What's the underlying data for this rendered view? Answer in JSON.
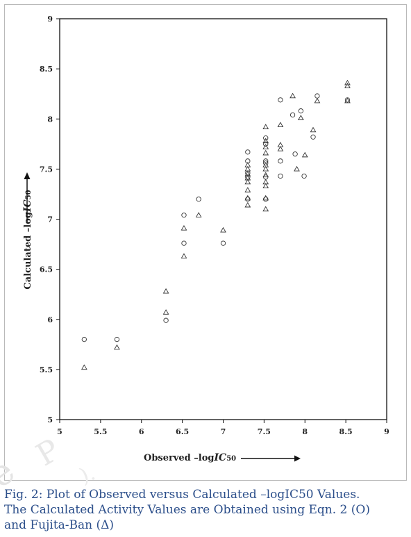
{
  "chart_data": {
    "type": "scatter",
    "xlabel": "Observed –log",
    "xlabel_ic": "IC",
    "xlabel_sub": "50",
    "ylabel": "Calculated –log",
    "ylabel_ic": "IC",
    "ylabel_sub": "50",
    "xlim": [
      5,
      9
    ],
    "ylim": [
      5,
      9
    ],
    "xticks": [
      5,
      5.5,
      6,
      6.5,
      7,
      7.5,
      8,
      8.5,
      9
    ],
    "xtick_labels": [
      "5",
      "5.5",
      "6",
      "6.5",
      "7",
      "7.5",
      "8",
      "8.5",
      "9"
    ],
    "yticks": [
      5,
      5.5,
      6,
      6.5,
      7,
      7.5,
      8,
      8.5,
      9
    ],
    "ytick_labels": [
      "5",
      "5.5",
      "6",
      "6.5",
      "7",
      "7.5",
      "8",
      "8.5",
      "9"
    ],
    "grid": false,
    "series": [
      {
        "marker": "circle",
        "points": [
          [
            5.3,
            5.8
          ],
          [
            5.7,
            5.8
          ],
          [
            6.3,
            5.99
          ],
          [
            6.52,
            7.04
          ],
          [
            6.52,
            6.76
          ],
          [
            6.7,
            7.2
          ],
          [
            7.0,
            6.76
          ],
          [
            7.3,
            7.67
          ],
          [
            7.3,
            7.58
          ],
          [
            7.3,
            7.46
          ],
          [
            7.3,
            7.42
          ],
          [
            7.3,
            7.2
          ],
          [
            7.52,
            7.81
          ],
          [
            7.52,
            7.75
          ],
          [
            7.52,
            7.58
          ],
          [
            7.52,
            7.56
          ],
          [
            7.52,
            7.42
          ],
          [
            7.52,
            7.2
          ],
          [
            7.7,
            8.19
          ],
          [
            7.7,
            7.58
          ],
          [
            7.7,
            7.43
          ],
          [
            7.85,
            8.04
          ],
          [
            7.88,
            7.65
          ],
          [
            7.95,
            8.08
          ],
          [
            7.99,
            7.43
          ],
          [
            8.1,
            7.82
          ],
          [
            8.15,
            8.23
          ],
          [
            8.52,
            8.19
          ]
        ]
      },
      {
        "marker": "triangle",
        "points": [
          [
            5.3,
            5.52
          ],
          [
            5.7,
            5.72
          ],
          [
            6.3,
            6.28
          ],
          [
            6.3,
            6.07
          ],
          [
            6.52,
            6.91
          ],
          [
            6.52,
            6.63
          ],
          [
            6.7,
            7.04
          ],
          [
            7.0,
            6.89
          ],
          [
            7.3,
            7.54
          ],
          [
            7.3,
            7.5
          ],
          [
            7.3,
            7.45
          ],
          [
            7.3,
            7.41
          ],
          [
            7.3,
            7.37
          ],
          [
            7.3,
            7.29
          ],
          [
            7.3,
            7.21
          ],
          [
            7.3,
            7.14
          ],
          [
            7.52,
            7.92
          ],
          [
            7.52,
            7.78
          ],
          [
            7.52,
            7.72
          ],
          [
            7.52,
            7.66
          ],
          [
            7.52,
            7.54
          ],
          [
            7.52,
            7.5
          ],
          [
            7.52,
            7.44
          ],
          [
            7.52,
            7.37
          ],
          [
            7.52,
            7.33
          ],
          [
            7.52,
            7.21
          ],
          [
            7.52,
            7.1
          ],
          [
            7.7,
            7.94
          ],
          [
            7.7,
            7.74
          ],
          [
            7.7,
            7.7
          ],
          [
            7.85,
            8.23
          ],
          [
            7.9,
            7.5
          ],
          [
            7.95,
            8.01
          ],
          [
            8.0,
            7.64
          ],
          [
            8.1,
            7.89
          ],
          [
            8.15,
            8.18
          ],
          [
            8.52,
            8.36
          ],
          [
            8.52,
            8.33
          ],
          [
            8.52,
            8.18
          ]
        ]
      }
    ]
  },
  "caption": {
    "line1": "Fig. 2: Plot of Observed versus Calculated –logIC50 Values.",
    "line2": "The Calculated Activity Values are Obtained using Eqn. 2 (O)",
    "line3": "and Fujita-Ban (Δ)"
  }
}
